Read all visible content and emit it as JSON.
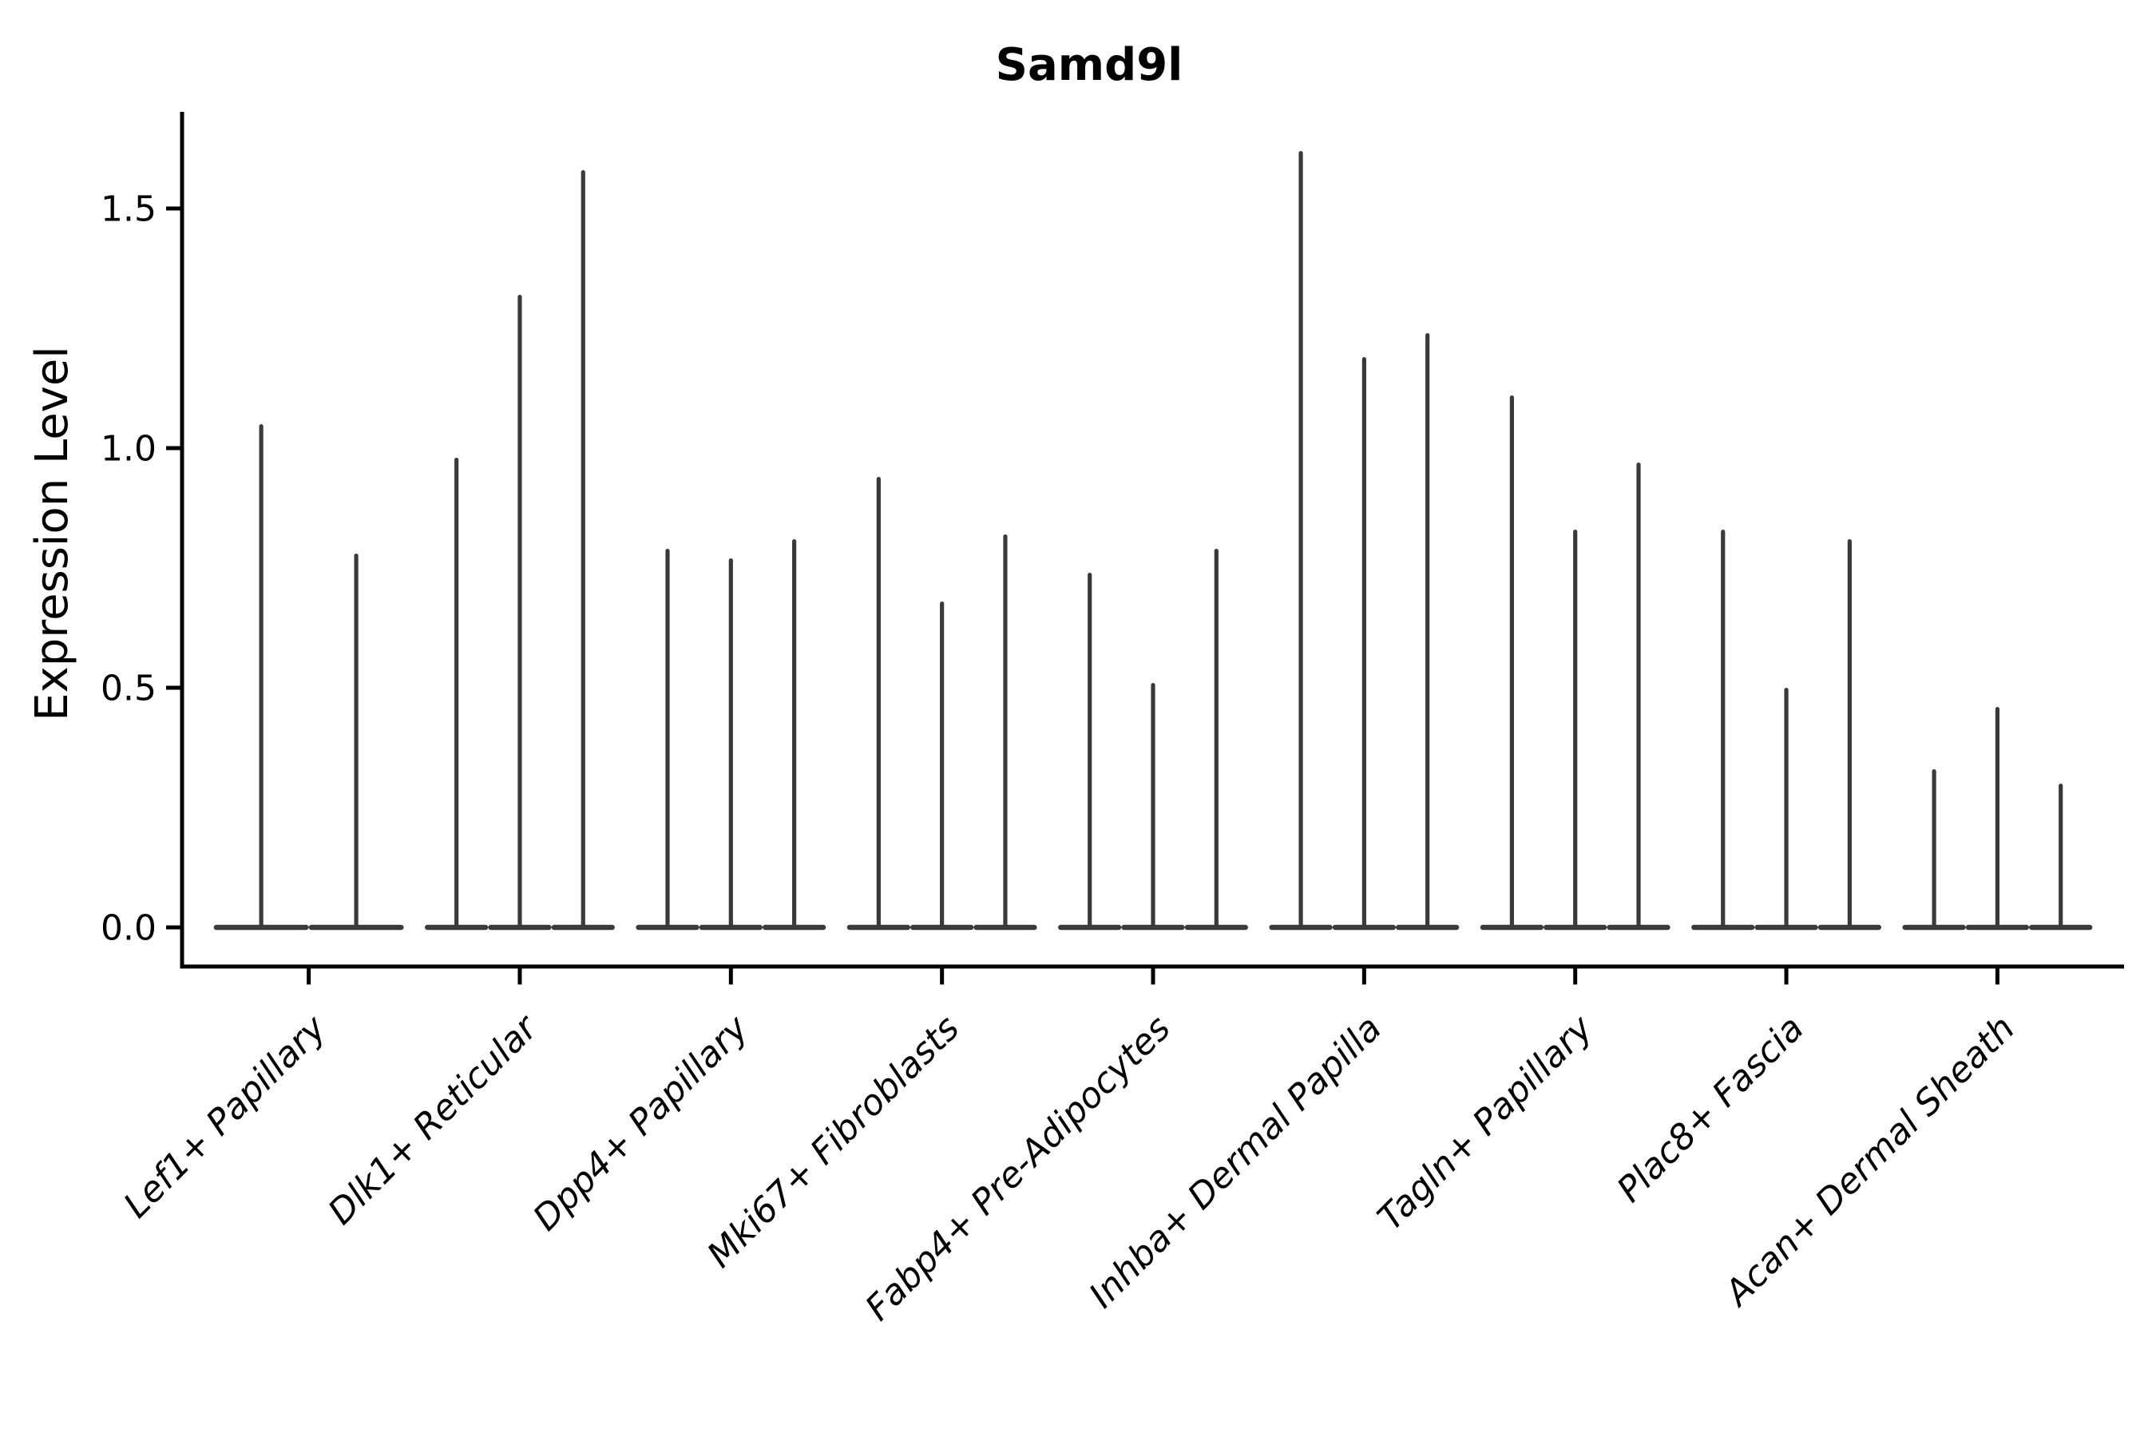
{
  "chart_data": {
    "type": "violin",
    "title": "Samd9l",
    "ylabel": "Expression Level",
    "xlabel": "",
    "legend": "none",
    "grid": "off",
    "ytick_labels": [
      "0.0",
      "0.5",
      "1.0",
      "1.5"
    ],
    "yticks": [
      0.0,
      0.5,
      1.0,
      1.5
    ],
    "ylim": [
      -0.08,
      1.7
    ],
    "categories": [
      "Lef1+ Papillary",
      "Dlk1+ Reticular",
      "Dpp4+ Papillary",
      "Mki67+ Fibroblasts",
      "Fabp4+ Pre-Adipocytes",
      "Inhba+ Dermal Papilla",
      "Tagln+ Papillary",
      "Plac8+ Fascia",
      "Acan+ Dermal Sheath"
    ],
    "groups": [
      {
        "category": "Lef1+ Papillary",
        "violin_maxima": [
          1.05,
          0.78
        ]
      },
      {
        "category": "Dlk1+ Reticular",
        "violin_maxima": [
          0.98,
          1.32,
          1.58
        ]
      },
      {
        "category": "Dpp4+ Papillary",
        "violin_maxima": [
          0.79,
          0.77,
          0.81
        ]
      },
      {
        "category": "Mki67+ Fibroblasts",
        "violin_maxima": [
          0.94,
          0.68,
          0.82
        ]
      },
      {
        "category": "Fabp4+ Pre-Adipocytes",
        "violin_maxima": [
          0.74,
          0.51,
          0.79
        ]
      },
      {
        "category": "Inhba+ Dermal Papilla",
        "violin_maxima": [
          1.62,
          1.19,
          1.24
        ]
      },
      {
        "category": "Tagln+ Papillary",
        "violin_maxima": [
          1.11,
          0.83,
          0.97
        ]
      },
      {
        "category": "Plac8+ Fascia",
        "violin_maxima": [
          0.83,
          0.5,
          0.81
        ]
      },
      {
        "category": "Acan+ Dermal Sheath",
        "violin_maxima": [
          0.33,
          0.46,
          0.3
        ]
      }
    ],
    "violin_note": "each violin has nearly all density at 0 (wide flat base) with a thin spike up to its maximum expression value",
    "colors": {
      "violin_fill": "#3a3a3a",
      "axis": "#000000",
      "text": "#000000",
      "background": "#ffffff"
    }
  }
}
